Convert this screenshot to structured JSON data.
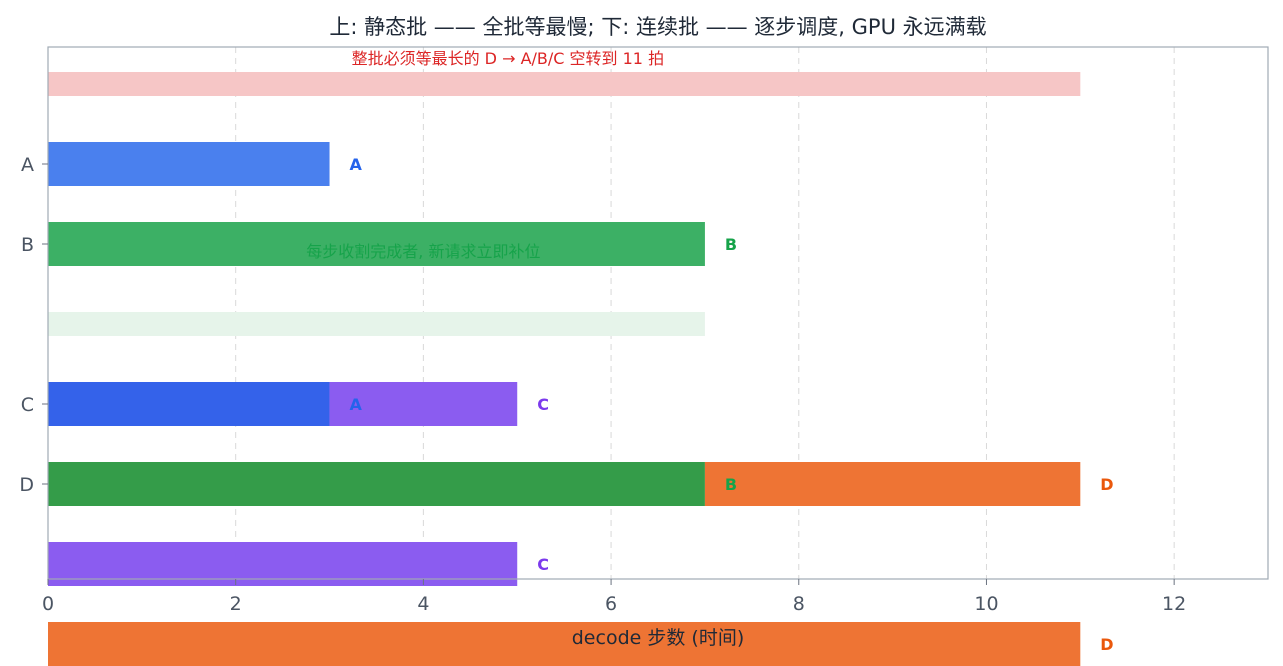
{
  "chart_data": {
    "type": "bar",
    "orientation": "horizontal",
    "title": "上: 静态批 —— 全批等最慢; 下: 连续批 —— 逐步调度, GPU 永远满载",
    "xlabel": "decode 步数 (时间)",
    "ylabel": "",
    "xlim": [
      0,
      13
    ],
    "xticks": [
      0,
      2,
      4,
      6,
      8,
      10,
      12
    ],
    "grid": "vertical dashed",
    "rows": [
      {
        "label": "",
        "segments": [
          {
            "start": 0,
            "end": 11,
            "color": "#f6c6c6",
            "thickness": "thin"
          }
        ]
      },
      {
        "label": "A",
        "segments": [
          {
            "start": 0,
            "end": 3,
            "color": "#4a80ee",
            "end_label": "A",
            "label_color": "#2563eb"
          }
        ]
      },
      {
        "label": "B",
        "segments": [
          {
            "start": 0,
            "end": 7,
            "color": "#3cb065",
            "end_label": "B",
            "label_color": "#16a34a"
          }
        ]
      },
      {
        "label": "",
        "segments": [
          {
            "start": 0,
            "end": 7,
            "color": "#e6f4ea",
            "thickness": "thin"
          }
        ]
      },
      {
        "label": "C",
        "segments": [
          {
            "start": 0,
            "end": 3,
            "color": "#3462ea",
            "end_label": "A",
            "label_color": "#2563eb"
          },
          {
            "start": 3,
            "end": 5,
            "color": "#8b5cf0",
            "end_label": "C",
            "label_color": "#7c3aed"
          }
        ]
      },
      {
        "label": "D",
        "segments": [
          {
            "start": 0,
            "end": 7,
            "color": "#349c49",
            "end_label": "B",
            "label_color": "#16a34a"
          },
          {
            "start": 7,
            "end": 11,
            "color": "#ee7434",
            "end_label": "D",
            "label_color": "#ea580c"
          }
        ]
      },
      {
        "label": "",
        "segments": [
          {
            "start": 0,
            "end": 5,
            "color": "#8b5cf0",
            "end_label": "C",
            "label_color": "#7c3aed"
          }
        ]
      },
      {
        "label": "",
        "segments": [
          {
            "start": 0,
            "end": 11,
            "color": "#ee7434",
            "end_label": "D",
            "label_color": "#ea580c"
          }
        ]
      }
    ],
    "annotations": [
      {
        "text": "整批必须等最长的 D → A/B/C 空转到 11 拍",
        "x": 4.9,
        "row": 0,
        "color": "#dc2626"
      },
      {
        "text": "每步收割完成者, 新请求立即补位",
        "x": 4.0,
        "row": 2,
        "color": "#16a34a"
      }
    ]
  }
}
